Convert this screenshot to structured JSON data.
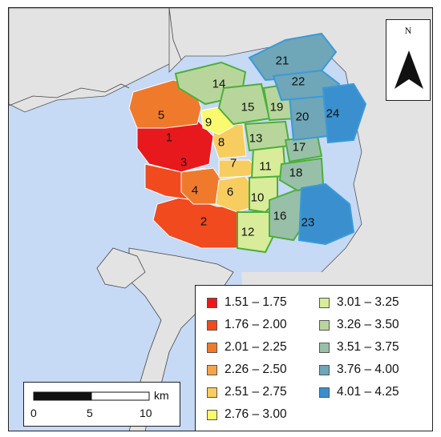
{
  "compass": {
    "north_label": "N",
    "arrow_icon": "north-arrow-icon"
  },
  "scalebar": {
    "unit": "km",
    "ticks": [
      "0",
      "5",
      "10"
    ]
  },
  "colors": {
    "water": "#c6d9f5",
    "land": "#e3e3e3",
    "outline": "#222222"
  },
  "legend": {
    "items": [
      {
        "label": "1.51 – 1.75",
        "color": "#e8191c"
      },
      {
        "label": "1.76 – 2.00",
        "color": "#f04a1e"
      },
      {
        "label": "2.01 – 2.25",
        "color": "#f07a2c"
      },
      {
        "label": "2.26 – 2.50",
        "color": "#f5a44a"
      },
      {
        "label": "2.51 – 2.75",
        "color": "#f8cd60"
      },
      {
        "label": "2.76 – 3.00",
        "color": "#fafa6e"
      },
      {
        "label": "3.01 – 3.25",
        "color": "#d9ec9a"
      },
      {
        "label": "3.26 – 3.50",
        "color": "#b8d69c"
      },
      {
        "label": "3.51 – 3.75",
        "color": "#98c0a8"
      },
      {
        "label": "3.76 – 4.00",
        "color": "#6fa6b8"
      },
      {
        "label": "4.01 – 4.25",
        "color": "#3a8fcf"
      }
    ]
  },
  "districts": [
    {
      "id": "1",
      "value_class": 0
    },
    {
      "id": "2",
      "value_class": 1
    },
    {
      "id": "3",
      "value_class": 1
    },
    {
      "id": "4",
      "value_class": 2
    },
    {
      "id": "5",
      "value_class": 2
    },
    {
      "id": "6",
      "value_class": 4
    },
    {
      "id": "7",
      "value_class": 4
    },
    {
      "id": "8",
      "value_class": 4
    },
    {
      "id": "9",
      "value_class": 5
    },
    {
      "id": "10",
      "value_class": 6
    },
    {
      "id": "11",
      "value_class": 6
    },
    {
      "id": "12",
      "value_class": 6
    },
    {
      "id": "13",
      "value_class": 7
    },
    {
      "id": "14",
      "value_class": 7
    },
    {
      "id": "15",
      "value_class": 7
    },
    {
      "id": "16",
      "value_class": 8
    },
    {
      "id": "17",
      "value_class": 8
    },
    {
      "id": "18",
      "value_class": 8
    },
    {
      "id": "19",
      "value_class": 7
    },
    {
      "id": "20",
      "value_class": 9
    },
    {
      "id": "21",
      "value_class": 9
    },
    {
      "id": "22",
      "value_class": 9
    },
    {
      "id": "23",
      "value_class": 10
    },
    {
      "id": "24",
      "value_class": 10
    }
  ]
}
